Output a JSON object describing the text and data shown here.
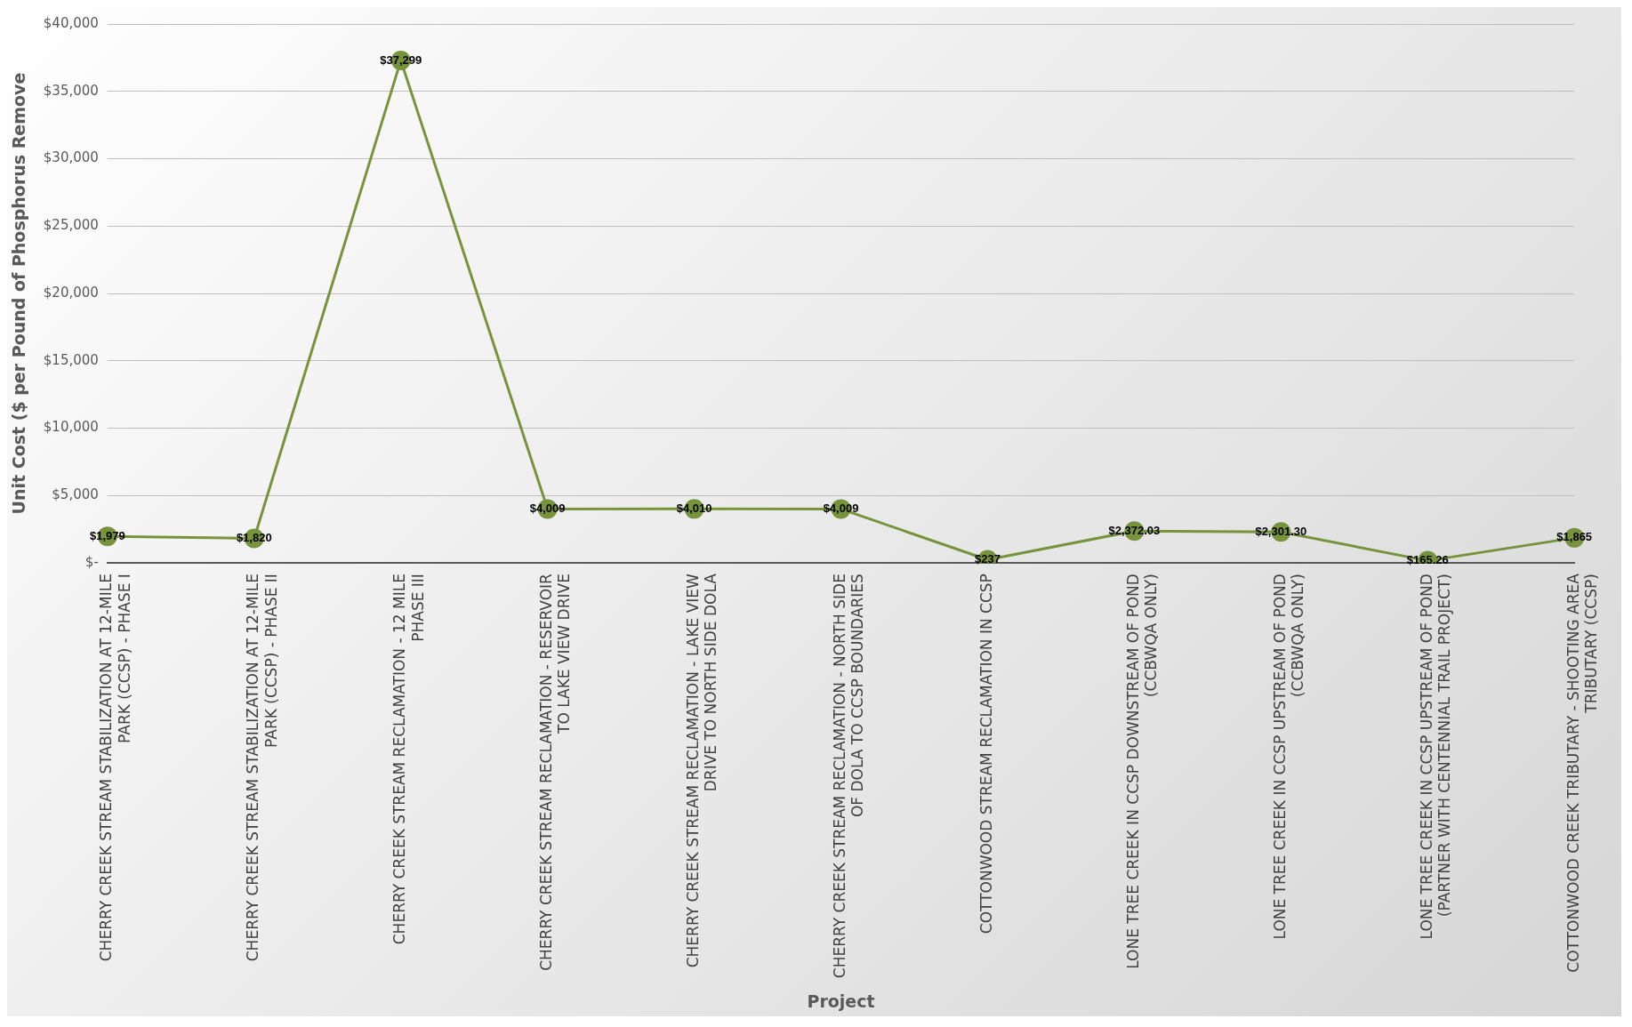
{
  "chart_data": {
    "type": "line",
    "xlabel": "Project",
    "ylabel": "Unit Cost ($ per Pound of Phosphorus Remove",
    "categories": [
      "CHERRY CREEK STREAM STABILIZATION AT 12-MILE PARK (CCSP) - PHASE I",
      "CHERRY CREEK STREAM STABILIZATION AT 12-MILE PARK (CCSP) - PHASE II",
      "CHERRY CREEK STREAM RECLAMATION - 12 MILE PHASE III",
      "CHERRY CREEK STREAM RECLAMATION - RESERVOIR TO LAKE VIEW DRIVE",
      "CHERRY CREEK STREAM RECLAMATION - LAKE VIEW DRIVE TO NORTH SIDE DOLA",
      "CHERRY CREEK STREAM RECLAMATION - NORTH SIDE OF DOLA TO CCSP BOUNDARIES",
      "COTTONWOOD STREAM RECLAMATION IN CCSP",
      "LONE TREE CREEK IN CCSP DOWNSTREAM OF POND (CCBWQA ONLY)",
      "LONE TREE CREEK IN CCSP UPSTREAM OF POND (CCBWQA ONLY)",
      "LONE TREE CREEK IN CCSP UPSTREAM OF POND (PARTNER WITH CENTENNIAL TRAIL PROJECT)",
      "COTTONWOOD CREEK TRIBUTARY - SHOOTING AREA TRIBUTARY (CCSP)"
    ],
    "series": [
      {
        "color": "#77933c",
        "values": [
          1979,
          1820,
          37299,
          4009,
          4010,
          4009,
          237,
          2372.03,
          2301.3,
          165.26,
          1865
        ],
        "value_labels": [
          "$1,979",
          "$1,820",
          "$37,299",
          "$4,009",
          "$4,010",
          "$4,009",
          "$237",
          "$2,372.03",
          "$2,301.30",
          "$165.26",
          "$1,865"
        ]
      }
    ],
    "ylim": [
      0,
      40000
    ],
    "yticks": [
      {
        "value": 0,
        "label": "$-"
      },
      {
        "value": 5000,
        "label": "$5,000"
      },
      {
        "value": 10000,
        "label": "$10,000"
      },
      {
        "value": 15000,
        "label": "$15,000"
      },
      {
        "value": 20000,
        "label": "$20,000"
      },
      {
        "value": 25000,
        "label": "$25,000"
      },
      {
        "value": 30000,
        "label": "$30,000"
      },
      {
        "value": 35000,
        "label": "$35,000"
      },
      {
        "value": 40000,
        "label": "$40,000"
      }
    ],
    "grid": "y",
    "marker": "circle",
    "line_style": "solid",
    "legend": false
  }
}
